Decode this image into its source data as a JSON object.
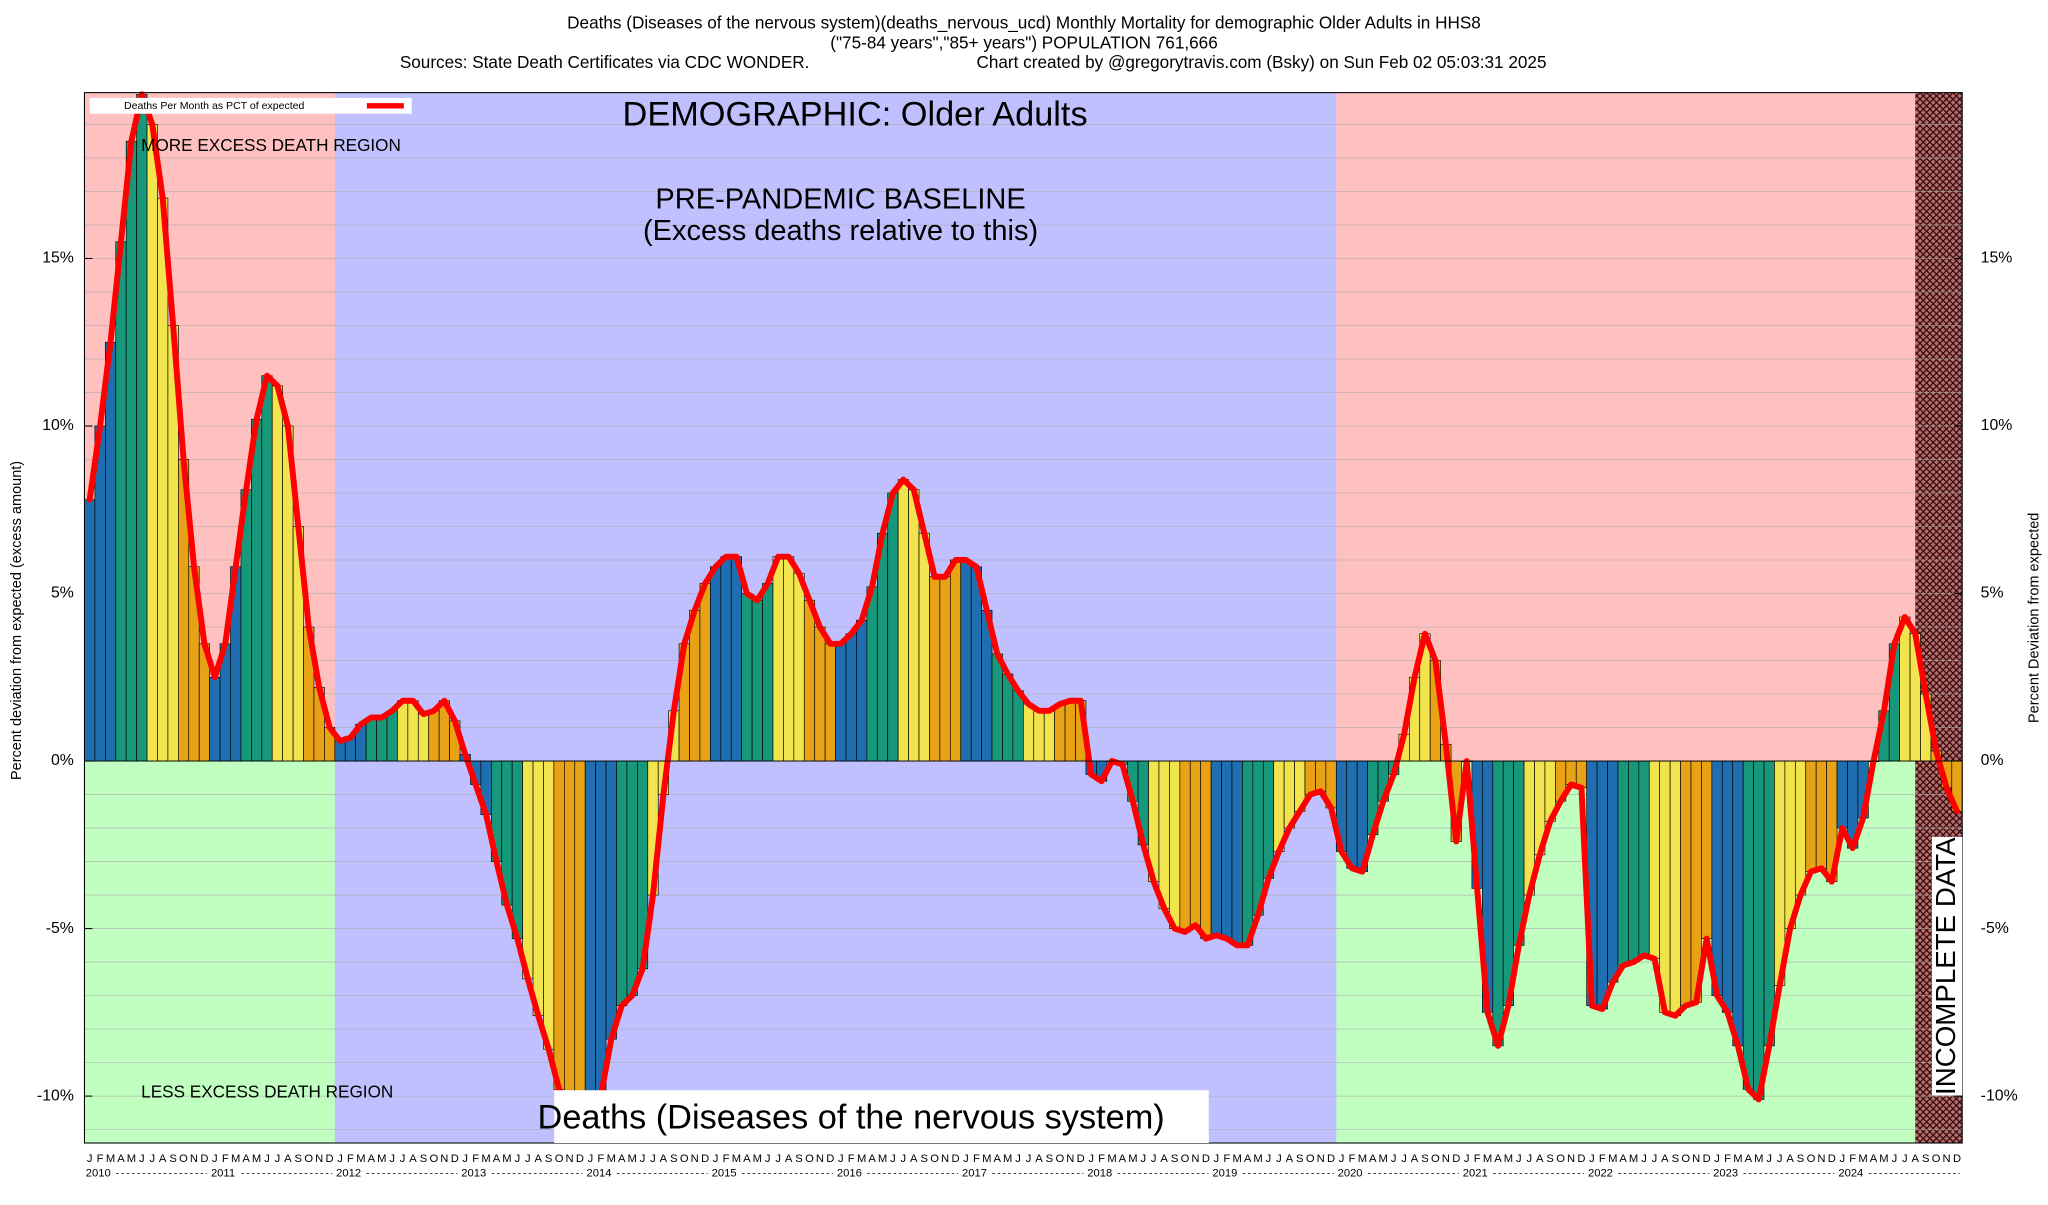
{
  "chart_data": {
    "type": "bar-line",
    "title": "Deaths (Diseases of the nervous system)(deaths_nervous_ucd) Monthly Mortality for demographic Older Adults in HHS8",
    "subtitle": "(\"75-84 years\",\"85+ years\") POPULATION 761,666",
    "source": "Sources: State Death Certificates via CDC WONDER.",
    "credit": "Chart created by @gregorytravis.com (Bsky) on Sun Feb 02 05:03:31 2025",
    "demographic_label": "DEMOGRAPHIC: Older Adults",
    "baseline_label": "PRE-PANDEMIC BASELINE",
    "baseline_note": "(Excess deaths relative to this)",
    "more_region_label": "MORE EXCESS DEATH REGION",
    "less_region_label": "LESS EXCESS DEATH REGION",
    "cause_label": "Deaths (Diseases of the nervous system)",
    "incomplete_label": "INCOMPLETE DATA",
    "y_label": "Percent deviation from expected (excess amount)",
    "y2_label": "Percent Deviation from expected",
    "baseline_years": [
      "2012",
      "2019"
    ],
    "years": [
      "2010",
      "2011",
      "2012",
      "2013",
      "2014",
      "2015",
      "2016",
      "2017",
      "2018",
      "2019",
      "2020",
      "2021",
      "2022",
      "2023",
      "2024"
    ],
    "categories": [
      "J",
      "F",
      "M",
      "A",
      "M",
      "J",
      "J",
      "A",
      "S",
      "O",
      "N",
      "D",
      "J",
      "F",
      "M",
      "A",
      "M",
      "J",
      "J",
      "A",
      "S",
      "O",
      "N",
      "D",
      "J",
      "F",
      "M",
      "A",
      "M",
      "J",
      "J",
      "A",
      "S",
      "O",
      "N",
      "D",
      "J",
      "F",
      "M",
      "A",
      "M",
      "J",
      "J",
      "A",
      "S",
      "O",
      "N",
      "D",
      "J",
      "F",
      "M",
      "A",
      "M",
      "J",
      "J",
      "A",
      "S",
      "O",
      "N",
      "D",
      "J",
      "F",
      "M",
      "A",
      "M",
      "J",
      "J",
      "A",
      "S",
      "O",
      "N",
      "D",
      "J",
      "F",
      "M",
      "A",
      "M",
      "J",
      "J",
      "A",
      "S",
      "O",
      "N",
      "D",
      "J",
      "F",
      "M",
      "A",
      "M",
      "J",
      "J",
      "A",
      "S",
      "O",
      "N",
      "D",
      "J",
      "F",
      "M",
      "A",
      "M",
      "J",
      "J",
      "A",
      "S",
      "O",
      "N",
      "D",
      "J",
      "F",
      "M",
      "A",
      "M",
      "J",
      "J",
      "A",
      "S",
      "O",
      "N",
      "D",
      "J",
      "F",
      "M",
      "A",
      "M",
      "J",
      "J",
      "A",
      "S",
      "O",
      "N",
      "D",
      "J",
      "F",
      "M",
      "A",
      "M",
      "J",
      "J",
      "A",
      "S",
      "O",
      "N",
      "D",
      "J",
      "F",
      "M",
      "A",
      "M",
      "J",
      "J",
      "A",
      "S",
      "O",
      "N",
      "D",
      "J",
      "F",
      "M",
      "A",
      "M",
      "J",
      "J",
      "A",
      "S",
      "O",
      "N",
      "D",
      "J",
      "F",
      "M",
      "A",
      "M",
      "J",
      "J",
      "A",
      "S",
      "O",
      "N",
      "D"
    ],
    "season_colors": [
      "#1f6fb0",
      "#17987a",
      "#f2e44c",
      "#e8a216"
    ],
    "series": [
      {
        "name": "Deaths Per Month as PCT of expected",
        "color": "#ff0000",
        "values": [
          7.8,
          10.0,
          12.5,
          15.5,
          18.5,
          19.9,
          19.0,
          16.8,
          13.0,
          9.0,
          5.8,
          3.5,
          2.5,
          3.5,
          5.8,
          8.1,
          10.2,
          11.5,
          11.2,
          10.0,
          7.0,
          4.0,
          2.2,
          1.0,
          0.6,
          0.7,
          1.1,
          1.3,
          1.3,
          1.5,
          1.8,
          1.8,
          1.4,
          1.5,
          1.8,
          1.2,
          0.2,
          -0.7,
          -1.6,
          -3.0,
          -4.3,
          -5.3,
          -6.5,
          -7.6,
          -8.6,
          -9.8,
          -10.6,
          -11.3,
          -10.2,
          -10.0,
          -8.3,
          -7.3,
          -7.0,
          -6.2,
          -4.0,
          -1.0,
          1.5,
          3.5,
          4.5,
          5.3,
          5.8,
          6.1,
          6.1,
          5.0,
          4.8,
          5.3,
          6.1,
          6.1,
          5.6,
          4.8,
          4.0,
          3.5,
          3.5,
          3.8,
          4.2,
          5.2,
          6.8,
          8.0,
          8.4,
          8.1,
          6.8,
          5.5,
          5.5,
          6.0,
          6.0,
          5.8,
          4.5,
          3.2,
          2.6,
          2.1,
          1.7,
          1.5,
          1.5,
          1.7,
          1.8,
          1.8,
          -0.4,
          -0.6,
          0.0,
          -0.1,
          -1.2,
          -2.5,
          -3.6,
          -4.4,
          -5.0,
          -5.1,
          -4.9,
          -5.3,
          -5.2,
          -5.3,
          -5.5,
          -5.5,
          -4.6,
          -3.5,
          -2.7,
          -2.0,
          -1.5,
          -1.0,
          -0.9,
          -1.4,
          -2.7,
          -3.2,
          -3.3,
          -2.2,
          -1.2,
          -0.4,
          0.8,
          2.5,
          3.8,
          3.0,
          0.5,
          -2.4,
          0.0,
          -3.8,
          -7.5,
          -8.5,
          -7.3,
          -5.5,
          -4.0,
          -2.8,
          -1.8,
          -1.2,
          -0.7,
          -0.8,
          -7.3,
          -7.4,
          -6.6,
          -6.1,
          -6.0,
          -5.8,
          -5.9,
          -7.5,
          -7.6,
          -7.3,
          -7.2,
          -5.3,
          -7.0,
          -7.5,
          -8.5,
          -9.8,
          -10.1,
          -8.5,
          -6.7,
          -5.0,
          -4.0,
          -3.3,
          -3.2,
          -3.6,
          -2.0,
          -2.6,
          -1.7,
          0.0,
          1.5,
          3.5,
          4.3,
          3.8,
          2.0,
          0.3,
          -0.8,
          -1.5
        ]
      }
    ],
    "ylim": [
      -11.4,
      19.95
    ],
    "yticks": [
      {
        "value": -10,
        "label": "-10%"
      },
      {
        "value": -5,
        "label": "-5%"
      },
      {
        "value": 0,
        "label": "0%"
      },
      {
        "value": 5,
        "label": "5%"
      },
      {
        "value": 10,
        "label": "10%"
      },
      {
        "value": 15,
        "label": "15%"
      }
    ],
    "minor_yticks": [
      -11,
      -10,
      -9,
      -8,
      -7,
      -6,
      -5,
      -4,
      -3,
      -2,
      -1,
      0,
      1,
      2,
      3,
      4,
      5,
      6,
      7,
      8,
      9,
      10,
      11,
      12,
      13,
      14,
      15,
      16,
      17,
      18,
      19
    ],
    "grid": true,
    "legend": "top-left",
    "above_color": "#ffc0c0",
    "below_color": "#c0ffc0",
    "baseline_color": "#c0c0ff"
  }
}
